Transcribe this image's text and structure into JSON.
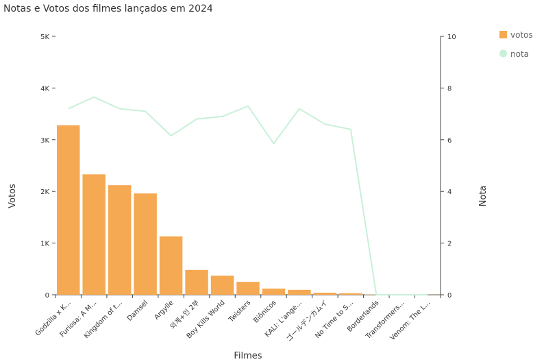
{
  "chart_data": {
    "type": "bar",
    "title": "Notas e Votos dos filmes lançados em 2024",
    "xlabel": "Filmes",
    "ylabel": "Votos",
    "y2label": "Nota",
    "ylim": [
      0,
      5000
    ],
    "y2lim": [
      0,
      10
    ],
    "y_ticks": [
      "0",
      "1K",
      "2K",
      "3K",
      "4K",
      "5K"
    ],
    "y2_ticks": [
      "0",
      "2",
      "4",
      "6",
      "8",
      "10"
    ],
    "grid": false,
    "legend_position": "top-right",
    "categories": [
      "Godzilla x K...",
      "Furiosa: A M...",
      "Kingdom of t...",
      "Damsel",
      "Argylle",
      "외계+인 2부",
      "Boy Kills World",
      "Twisters",
      "Biônicos",
      "KALI: L'ange...",
      "ゴールデンカムイ",
      "No Time to S...",
      "Borderlands",
      "Transformers...",
      "Venom: The L..."
    ],
    "series": [
      {
        "name": "votos",
        "type": "bar",
        "axis": "left",
        "color": "#f5a952",
        "values": [
          3280,
          2330,
          2120,
          1960,
          1130,
          480,
          370,
          250,
          120,
          95,
          40,
          30,
          5,
          3,
          2
        ]
      },
      {
        "name": "nota",
        "type": "line",
        "axis": "right",
        "color": "#c8f0d8",
        "values": [
          7.2,
          7.65,
          7.2,
          7.1,
          6.15,
          6.8,
          6.9,
          7.3,
          5.85,
          7.2,
          6.6,
          6.4,
          0,
          0,
          0
        ]
      }
    ]
  }
}
